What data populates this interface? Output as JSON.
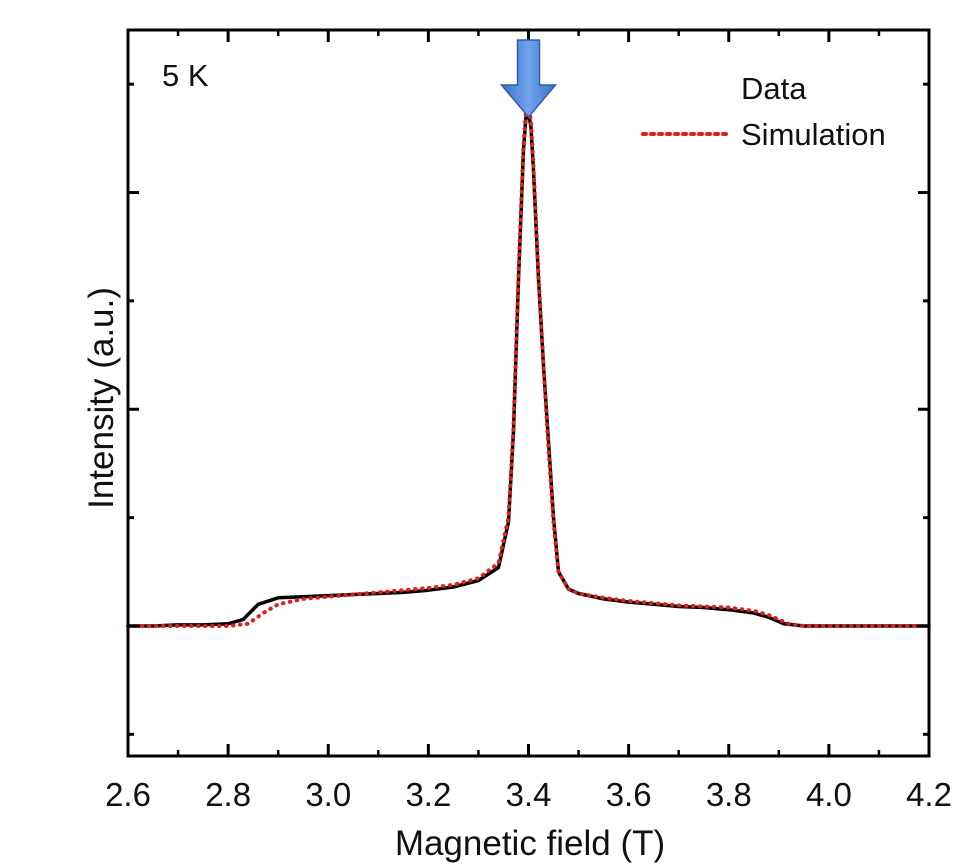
{
  "chart_data": {
    "type": "line",
    "title": "",
    "annotation": "5 K",
    "xlabel": "Magnetic field (T)",
    "ylabel": "Intensity (a.u.)",
    "xlim": [
      2.6,
      4.2
    ],
    "ylim": [
      -0.6,
      2.75
    ],
    "x_ticks": [
      "2.6",
      "2.8",
      "3.0",
      "3.2",
      "3.4",
      "3.6",
      "3.8",
      "4.0",
      "4.2"
    ],
    "x_tick_values": [
      2.6,
      2.8,
      3.0,
      3.2,
      3.4,
      3.6,
      3.8,
      4.0,
      4.2
    ],
    "y_tick_values": [
      -0.5,
      0.0,
      0.5,
      1.0,
      1.5,
      2.0,
      2.5
    ],
    "grid": false,
    "legend_position": "top-right",
    "arrow_marker": {
      "x": 3.4,
      "color": "#4a86d8"
    },
    "series": [
      {
        "name": "Data",
        "color": "#000000",
        "style": "solid",
        "points": [
          [
            2.6,
            0.0
          ],
          [
            2.65,
            0.0
          ],
          [
            2.7,
            0.005
          ],
          [
            2.75,
            0.005
          ],
          [
            2.8,
            0.01
          ],
          [
            2.83,
            0.03
          ],
          [
            2.86,
            0.1
          ],
          [
            2.9,
            0.13
          ],
          [
            2.95,
            0.135
          ],
          [
            3.0,
            0.14
          ],
          [
            3.05,
            0.145
          ],
          [
            3.1,
            0.15
          ],
          [
            3.15,
            0.155
          ],
          [
            3.2,
            0.165
          ],
          [
            3.25,
            0.18
          ],
          [
            3.3,
            0.21
          ],
          [
            3.34,
            0.27
          ],
          [
            3.36,
            0.48
          ],
          [
            3.37,
            0.9
          ],
          [
            3.38,
            1.6
          ],
          [
            3.39,
            2.2
          ],
          [
            3.395,
            2.35
          ],
          [
            3.4,
            2.37
          ],
          [
            3.405,
            2.3
          ],
          [
            3.41,
            2.1
          ],
          [
            3.42,
            1.6
          ],
          [
            3.43,
            1.2
          ],
          [
            3.44,
            0.85
          ],
          [
            3.45,
            0.5
          ],
          [
            3.46,
            0.25
          ],
          [
            3.48,
            0.17
          ],
          [
            3.5,
            0.15
          ],
          [
            3.55,
            0.125
          ],
          [
            3.6,
            0.11
          ],
          [
            3.65,
            0.1
          ],
          [
            3.7,
            0.09
          ],
          [
            3.75,
            0.085
          ],
          [
            3.8,
            0.075
          ],
          [
            3.85,
            0.06
          ],
          [
            3.88,
            0.04
          ],
          [
            3.91,
            0.01
          ],
          [
            3.95,
            0.0
          ],
          [
            4.0,
            0.0
          ],
          [
            4.1,
            0.0
          ],
          [
            4.2,
            0.0
          ]
        ]
      },
      {
        "name": "Simulation",
        "color": "#e11f1f",
        "style": "dotted",
        "points": [
          [
            2.6,
            0.0
          ],
          [
            2.65,
            0.0
          ],
          [
            2.7,
            0.0
          ],
          [
            2.75,
            0.0
          ],
          [
            2.8,
            0.0
          ],
          [
            2.84,
            0.01
          ],
          [
            2.87,
            0.06
          ],
          [
            2.9,
            0.1
          ],
          [
            2.95,
            0.125
          ],
          [
            3.0,
            0.135
          ],
          [
            3.05,
            0.145
          ],
          [
            3.1,
            0.155
          ],
          [
            3.15,
            0.165
          ],
          [
            3.2,
            0.175
          ],
          [
            3.25,
            0.19
          ],
          [
            3.3,
            0.22
          ],
          [
            3.34,
            0.29
          ],
          [
            3.36,
            0.5
          ],
          [
            3.37,
            0.92
          ],
          [
            3.38,
            1.62
          ],
          [
            3.39,
            2.22
          ],
          [
            3.395,
            2.38
          ],
          [
            3.4,
            2.4
          ],
          [
            3.405,
            2.33
          ],
          [
            3.41,
            2.12
          ],
          [
            3.42,
            1.62
          ],
          [
            3.43,
            1.2
          ],
          [
            3.44,
            0.82
          ],
          [
            3.45,
            0.48
          ],
          [
            3.46,
            0.25
          ],
          [
            3.48,
            0.17
          ],
          [
            3.5,
            0.15
          ],
          [
            3.55,
            0.13
          ],
          [
            3.6,
            0.115
          ],
          [
            3.65,
            0.105
          ],
          [
            3.7,
            0.095
          ],
          [
            3.75,
            0.09
          ],
          [
            3.8,
            0.085
          ],
          [
            3.85,
            0.07
          ],
          [
            3.88,
            0.05
          ],
          [
            3.92,
            0.01
          ],
          [
            3.95,
            0.0
          ],
          [
            4.0,
            0.0
          ],
          [
            4.1,
            0.0
          ],
          [
            4.2,
            0.0
          ]
        ]
      }
    ]
  }
}
